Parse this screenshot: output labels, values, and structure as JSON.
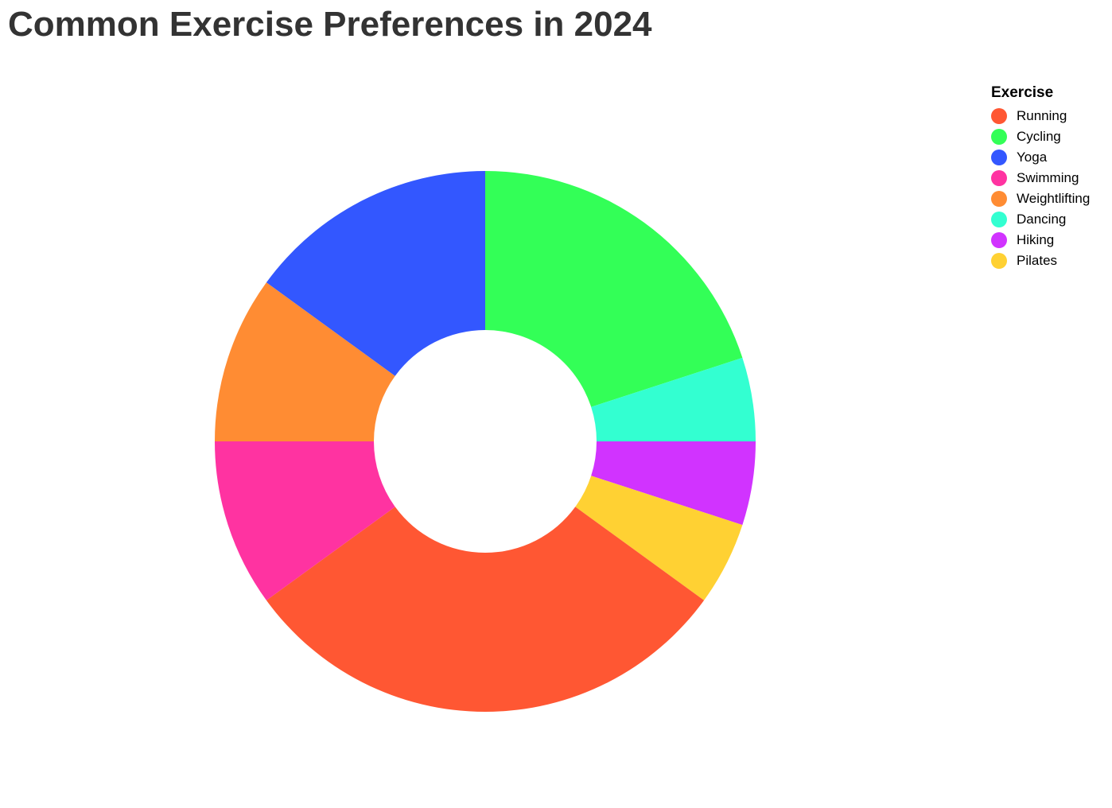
{
  "chart_data": {
    "type": "pie",
    "title": "Common Exercise Preferences in 2024",
    "donut": true,
    "legend_title": "Exercise",
    "legend_position": "top-right",
    "categories": [
      "Running",
      "Cycling",
      "Yoga",
      "Swimming",
      "Weightlifting",
      "Dancing",
      "Hiking",
      "Pilates"
    ],
    "values": [
      30,
      20,
      15,
      10,
      10,
      5,
      5,
      5
    ],
    "colors": [
      "#FF5733",
      "#33FF57",
      "#3357FF",
      "#FF33A1",
      "#FF8C33",
      "#33FFD1",
      "#D133FF",
      "#FFD133"
    ]
  }
}
